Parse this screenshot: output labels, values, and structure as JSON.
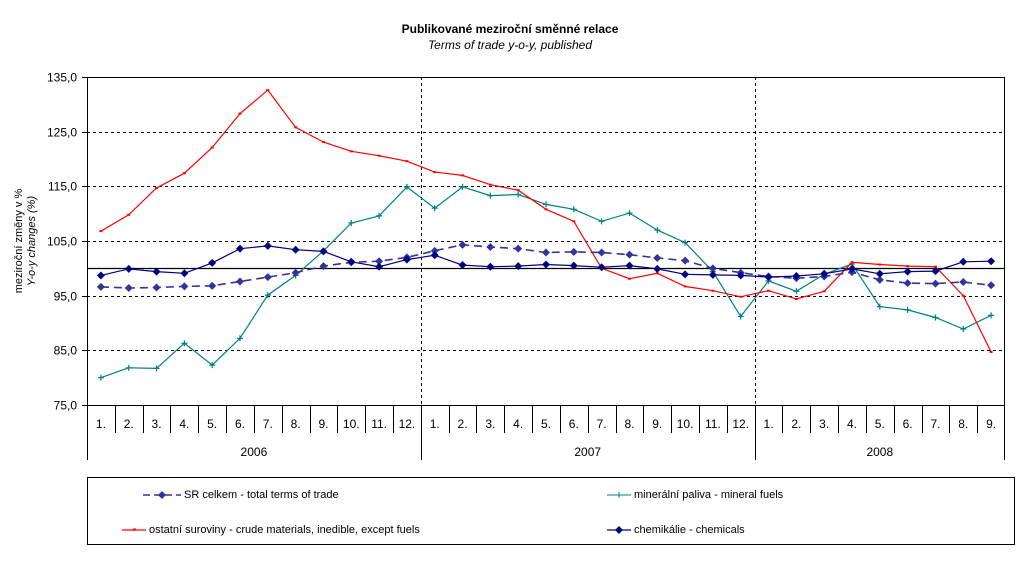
{
  "chart_data": {
    "type": "line",
    "title": "Publikované meziroční směnné relace",
    "subtitle": "Terms of trade y-o-y, published",
    "ylabel": "meziroční změny v %",
    "ylabel2": "Y-o-y changes (%)",
    "ylim": [
      75,
      135
    ],
    "yticks": [
      "75,0",
      "85,0",
      "95,0",
      "105,0",
      "115,0",
      "125,0",
      "135,0"
    ],
    "ytick_values": [
      75,
      85,
      95,
      105,
      115,
      125,
      135
    ],
    "reference_line": 100,
    "grid": "horizontal dashed; vertical dashed at year boundaries",
    "categories": [
      "1.",
      "2.",
      "3.",
      "4.",
      "5.",
      "6.",
      "7.",
      "8.",
      "9.",
      "10.",
      "11.",
      "12.",
      "1.",
      "2.",
      "3.",
      "4.",
      "5.",
      "6.",
      "7.",
      "8.",
      "9.",
      "10.",
      "11.",
      "12.",
      "1.",
      "2.",
      "3.",
      "4.",
      "5.",
      "6.",
      "7.",
      "8.",
      "9."
    ],
    "years": [
      {
        "label": "2006",
        "months": 12
      },
      {
        "label": "2007",
        "months": 12
      },
      {
        "label": "2008",
        "months": 9
      }
    ],
    "legend_position": "bottom",
    "series": [
      {
        "name": "SR celkem - total terms of trade",
        "color": "#333399",
        "style": "dashed",
        "marker": "diamond",
        "values": [
          96.6,
          96.4,
          96.5,
          96.7,
          96.8,
          97.6,
          98.4,
          99.2,
          100.4,
          101.1,
          101.3,
          102.0,
          103.2,
          104.3,
          103.9,
          103.6,
          102.9,
          103.0,
          102.9,
          102.5,
          101.9,
          101.4,
          100.0,
          99.2,
          98.5,
          98.2,
          98.5,
          99.3,
          97.9,
          97.3,
          97.2,
          97.5,
          96.9
        ]
      },
      {
        "name": "minerální paliva - mineral fuels",
        "color": "#008080",
        "style": "solid",
        "marker": "plus",
        "values": [
          80.0,
          81.8,
          81.7,
          86.3,
          82.3,
          87.2,
          95.1,
          98.7,
          103.2,
          108.3,
          109.6,
          114.9,
          111.0,
          114.9,
          113.3,
          113.5,
          111.7,
          110.8,
          108.6,
          110.1,
          107.0,
          104.7,
          99.4,
          91.2,
          97.7,
          95.8,
          98.9,
          100.8,
          93.0,
          92.4,
          91.0,
          88.9,
          91.4
        ]
      },
      {
        "name": "ostatní suroviny - crude materials, inedible, except fuels",
        "color": "#ff0000",
        "style": "solid",
        "marker": "dash",
        "values": [
          106.8,
          109.8,
          114.7,
          117.4,
          122.1,
          128.3,
          132.6,
          125.8,
          123.1,
          121.4,
          120.6,
          119.6,
          117.6,
          117.0,
          115.3,
          114.3,
          110.8,
          108.6,
          100.0,
          98.1,
          99.1,
          96.7,
          95.9,
          94.8,
          95.9,
          94.4,
          95.8,
          101.1,
          100.7,
          100.4,
          100.3,
          95.0,
          84.7
        ]
      },
      {
        "name": "chemikálie - chemicals",
        "color": "#000080",
        "style": "solid",
        "marker": "diamond",
        "values": [
          98.7,
          99.9,
          99.4,
          99.1,
          101.0,
          103.6,
          104.1,
          103.4,
          103.1,
          101.2,
          100.3,
          101.6,
          102.4,
          100.6,
          100.3,
          100.4,
          100.7,
          100.5,
          100.2,
          100.5,
          99.9,
          98.9,
          98.8,
          98.7,
          98.4,
          98.6,
          99.0,
          99.9,
          99.0,
          99.4,
          99.5,
          101.2,
          101.3
        ]
      }
    ]
  }
}
